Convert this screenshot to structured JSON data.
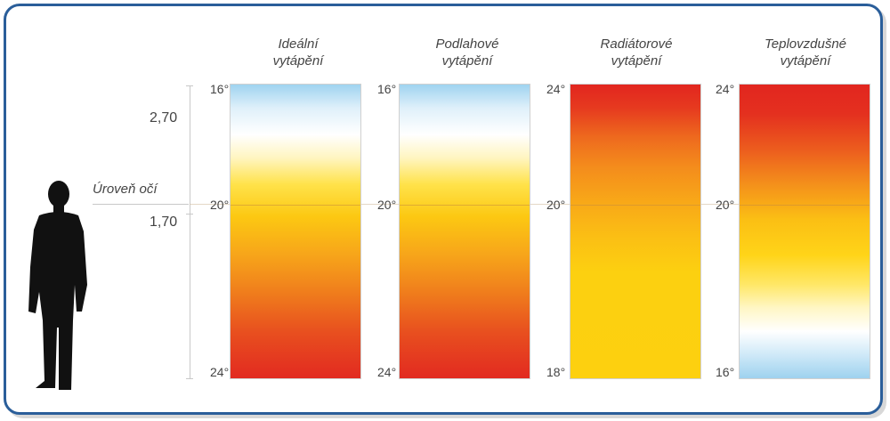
{
  "columns": [
    {
      "id": "ideal",
      "title": "Ideální\nvytápění",
      "top": "16°",
      "mid": "20°",
      "bottom": "24°"
    },
    {
      "id": "floor",
      "title": "Podlahové\nvytápění",
      "top": "16°",
      "mid": "20°",
      "bottom": "24°"
    },
    {
      "id": "radiator",
      "title": "Radiátorové\nvytápění",
      "top": "24°",
      "mid": "20°",
      "bottom": "18°"
    },
    {
      "id": "warmair",
      "title": "Teplovzdušné\nvytápění",
      "top": "24°",
      "mid": "20°",
      "bottom": "16°"
    }
  ],
  "heights": {
    "upper": "2,70",
    "lower": "1,70"
  },
  "eye_level": "Úroveň očí",
  "colors": {
    "frame": "#2a5e9a",
    "hot": "#e2261f",
    "warm": "#fcc812",
    "cold": "#9fd3f0"
  }
}
